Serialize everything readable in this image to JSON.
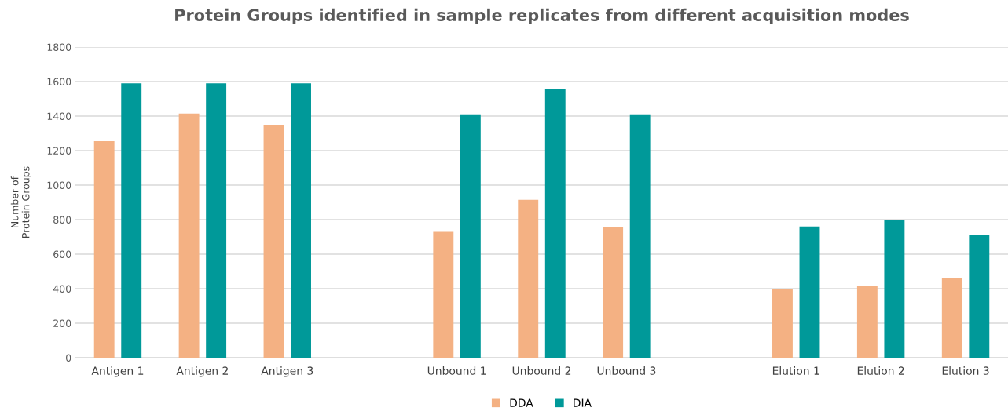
{
  "chart_data": {
    "type": "bar",
    "title": "Protein Groups identified in sample replicates from different acquisition modes",
    "ylabel": "Number of\nProtein Groups",
    "categories": [
      "Antigen 1",
      "Antigen 2",
      "Antigen 3",
      null,
      "Unbound 1",
      "Unbound 2",
      "Unbound 3",
      null,
      "Elution 1",
      "Elution 2",
      "Elution 3"
    ],
    "series": [
      {
        "name": "DDA",
        "color": "#f4b183",
        "values": [
          1255,
          1415,
          1350,
          null,
          730,
          915,
          755,
          null,
          400,
          415,
          460
        ]
      },
      {
        "name": "DIA",
        "color": "#009999",
        "values": [
          1590,
          1590,
          1590,
          null,
          1410,
          1555,
          1410,
          null,
          760,
          795,
          710
        ]
      }
    ],
    "ylim": [
      0,
      1800
    ],
    "yticks": [
      0,
      200,
      400,
      600,
      800,
      1000,
      1200,
      1400,
      1600,
      1800
    ],
    "grid": "y",
    "legend": "bottom"
  }
}
